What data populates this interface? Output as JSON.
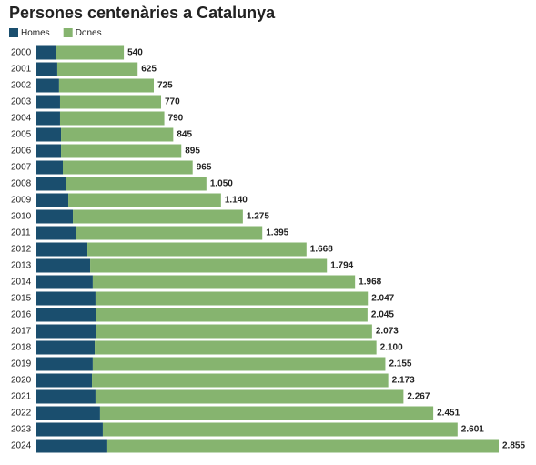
{
  "chart_data": {
    "type": "stacked-bar-horizontal",
    "title": "Persones centenàries a Catalunya",
    "categories": [
      "2000",
      "2001",
      "2002",
      "2003",
      "2004",
      "2005",
      "2006",
      "2007",
      "2008",
      "2009",
      "2010",
      "2011",
      "2012",
      "2013",
      "2014",
      "2015",
      "2016",
      "2017",
      "2018",
      "2019",
      "2020",
      "2021",
      "2022",
      "2023",
      "2024"
    ],
    "series": [
      {
        "name": "Homes",
        "color": "#1a4e6e",
        "values": [
          118,
          129,
          140,
          146,
          146,
          152,
          152,
          163,
          180,
          197,
          225,
          247,
          315,
          332,
          348,
          365,
          371,
          371,
          360,
          348,
          343,
          365,
          393,
          410,
          438
        ]
      },
      {
        "name": "Dones",
        "color": "#86b46f",
        "values": [
          422,
          496,
          585,
          624,
          644,
          693,
          743,
          802,
          870,
          943,
          1050,
          1148,
          1353,
          1462,
          1620,
          1682,
          1674,
          1702,
          1740,
          1807,
          1830,
          1902,
          2058,
          2191,
          2417
        ]
      }
    ],
    "totals": {
      "values": [
        540,
        625,
        725,
        770,
        790,
        845,
        895,
        965,
        1050,
        1140,
        1275,
        1395,
        1668,
        1794,
        1968,
        2047,
        2045,
        2073,
        2100,
        2155,
        2173,
        2267,
        2451,
        2601,
        2855
      ],
      "value_labels": [
        "540",
        "625",
        "725",
        "770",
        "790",
        "845",
        "895",
        "965",
        "1.050",
        "1.140",
        "1.275",
        "1.395",
        "1.668",
        "1.794",
        "1.968",
        "2.047",
        "2.045",
        "2.073",
        "2.100",
        "2.155",
        "2.173",
        "2.267",
        "2.451",
        "2.601",
        "2.855"
      ]
    }
  }
}
